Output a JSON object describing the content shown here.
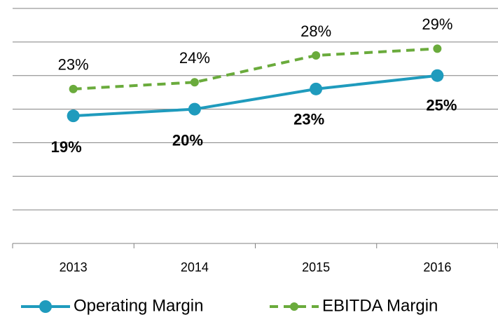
{
  "chart_data": {
    "type": "line",
    "categories": [
      "2013",
      "2014",
      "2015",
      "2016"
    ],
    "series": [
      {
        "name": "Operating Margin",
        "color": "#1f9bbd",
        "values": [
          19,
          20,
          23,
          25
        ],
        "value_labels": [
          "19%",
          "20%",
          "23%",
          "25%"
        ]
      },
      {
        "name": "EBITDA Margin",
        "color": "#6aab3c",
        "values": [
          23,
          24,
          28,
          29
        ],
        "value_labels": [
          "23%",
          "24%",
          "28%",
          "29%"
        ]
      }
    ],
    "ylim": [
      0,
      35
    ],
    "yticks": [
      0,
      5,
      10,
      15,
      20,
      25,
      30,
      35
    ],
    "grid": true,
    "legend": "bottom"
  }
}
